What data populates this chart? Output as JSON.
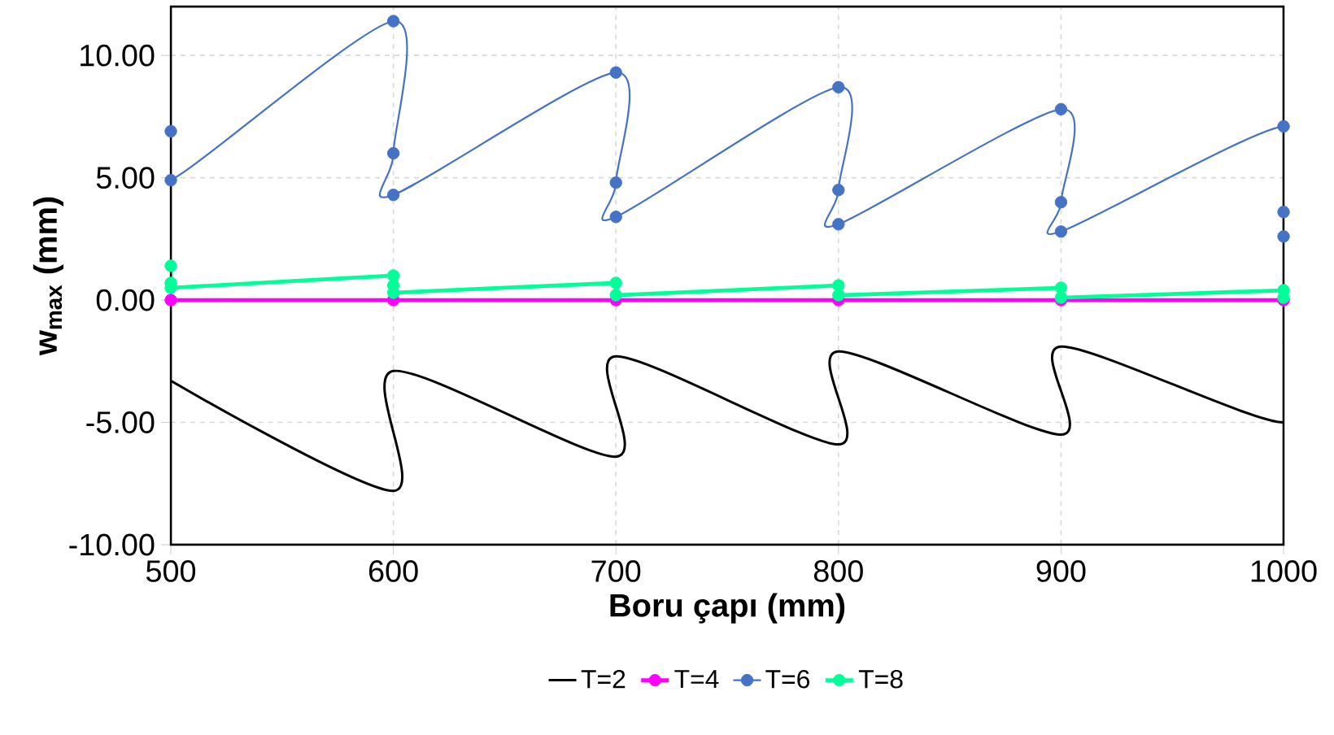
{
  "chart_data": {
    "type": "line",
    "xlabel": "Boru çapı (mm)",
    "ylabel": "w$_{max}$ (mm)",
    "xlim": [
      500,
      1000
    ],
    "xticks": [
      500,
      600,
      700,
      800,
      900,
      1000
    ],
    "ylim": [
      -10,
      12
    ],
    "yticks": [
      {
        "value": -10,
        "label": "-10.00"
      },
      {
        "value": -5,
        "label": "-5.00"
      },
      {
        "value": 0,
        "label": "0.00"
      },
      {
        "value": 5,
        "label": "5.00"
      },
      {
        "value": 10,
        "label": "10.00"
      }
    ],
    "grid": true,
    "legend": "bottom",
    "series": [
      {
        "name": "T=2",
        "color": "#000000",
        "marker": "none",
        "x": [
          500,
          600,
          600,
          700,
          700,
          800,
          800,
          900,
          900,
          1000,
          1000
        ],
        "values": [
          -3.3,
          -7.8,
          -2.9,
          -6.4,
          -2.3,
          -5.9,
          -2.1,
          -5.5,
          -1.9,
          -5.0,
          -1.7
        ]
      },
      {
        "name": "T=4",
        "color": "#ff00ff",
        "marker": "circle",
        "x": [
          500,
          600,
          700,
          800,
          900,
          1000
        ],
        "values": [
          0,
          0,
          0,
          0,
          0,
          0
        ]
      },
      {
        "name": "T=6",
        "color": "#4472c4",
        "marker": "circle",
        "x": [
          500,
          500,
          600,
          600,
          600,
          700,
          700,
          700,
          800,
          800,
          800,
          900,
          900,
          900,
          1000,
          1000,
          1000
        ],
        "values": [
          6.9,
          4.9,
          11.4,
          6.0,
          4.3,
          9.3,
          4.8,
          3.4,
          8.7,
          4.5,
          3.1,
          7.8,
          4.0,
          2.8,
          7.1,
          3.6,
          2.6
        ]
      },
      {
        "name": "T=8",
        "color": "#00ff99",
        "marker": "circle",
        "x": [
          500,
          500,
          500,
          600,
          600,
          600,
          700,
          700,
          800,
          800,
          900,
          900,
          1000,
          1000
        ],
        "values": [
          1.4,
          0.7,
          0.5,
          1.0,
          0.6,
          0.3,
          0.7,
          0.2,
          0.6,
          0.2,
          0.5,
          0.1,
          0.4,
          0.1
        ]
      }
    ]
  }
}
